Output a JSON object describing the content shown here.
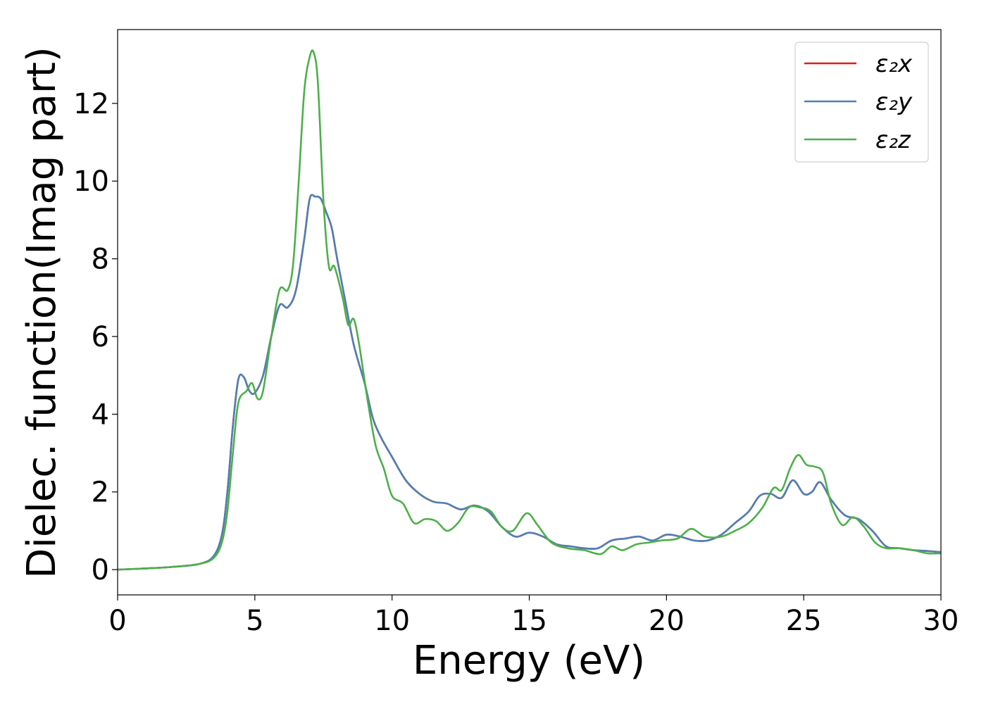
{
  "chart_data": {
    "type": "line",
    "xlabel": "Energy (eV)",
    "ylabel": "Dielec. function(Imag part)",
    "xlim": [
      0,
      30
    ],
    "ylim": [
      -0.65,
      13.9
    ],
    "xticks": [
      0,
      5,
      10,
      15,
      20,
      25,
      30
    ],
    "yticks": [
      0,
      2,
      4,
      6,
      8,
      10,
      12
    ],
    "grid": false,
    "legend_position": "top-right",
    "series": [
      {
        "name": "ε₂x",
        "color": "#e41a1c",
        "x": [
          0,
          1,
          2,
          3,
          3.5,
          3.8,
          4.0,
          4.2,
          4.4,
          4.6,
          4.8,
          5.0,
          5.3,
          5.6,
          5.9,
          6.2,
          6.5,
          6.8,
          7.0,
          7.2,
          7.4,
          7.6,
          7.8,
          8.0,
          8.3,
          8.6,
          9.0,
          9.3,
          9.6,
          10.0,
          10.5,
          11.0,
          11.5,
          12.0,
          12.5,
          13.0,
          13.5,
          14.0,
          14.5,
          15.0,
          15.5,
          16.0,
          16.5,
          17.0,
          17.5,
          18.0,
          18.5,
          19.0,
          19.5,
          20.0,
          20.5,
          21.0,
          21.5,
          22.0,
          22.5,
          23.0,
          23.4,
          23.8,
          24.2,
          24.6,
          25.0,
          25.3,
          25.6,
          26.0,
          26.5,
          27.0,
          27.5,
          28.0,
          28.5,
          29.0,
          29.5,
          30.0
        ],
        "values": [
          0.0,
          0.03,
          0.07,
          0.15,
          0.35,
          0.9,
          2.0,
          3.7,
          4.9,
          4.95,
          4.6,
          4.55,
          5.0,
          6.0,
          6.8,
          6.75,
          7.2,
          8.5,
          9.55,
          9.6,
          9.55,
          9.2,
          8.8,
          8.0,
          6.9,
          5.8,
          4.8,
          3.9,
          3.4,
          2.9,
          2.3,
          1.95,
          1.75,
          1.7,
          1.55,
          1.65,
          1.5,
          1.1,
          0.85,
          0.95,
          0.85,
          0.65,
          0.6,
          0.55,
          0.55,
          0.75,
          0.8,
          0.85,
          0.75,
          0.9,
          0.85,
          0.75,
          0.75,
          0.9,
          1.2,
          1.5,
          1.9,
          1.95,
          1.85,
          2.3,
          1.95,
          2.0,
          2.25,
          1.8,
          1.4,
          1.3,
          1.0,
          0.6,
          0.55,
          0.5,
          0.48,
          0.45
        ]
      },
      {
        "name": "ε₂y",
        "color": "#4f80b6",
        "x": [
          0,
          1,
          2,
          3,
          3.5,
          3.8,
          4.0,
          4.2,
          4.4,
          4.6,
          4.8,
          5.0,
          5.3,
          5.6,
          5.9,
          6.2,
          6.5,
          6.8,
          7.0,
          7.2,
          7.4,
          7.6,
          7.8,
          8.0,
          8.3,
          8.6,
          9.0,
          9.3,
          9.6,
          10.0,
          10.5,
          11.0,
          11.5,
          12.0,
          12.5,
          13.0,
          13.5,
          14.0,
          14.5,
          15.0,
          15.5,
          16.0,
          16.5,
          17.0,
          17.5,
          18.0,
          18.5,
          19.0,
          19.5,
          20.0,
          20.5,
          21.0,
          21.5,
          22.0,
          22.5,
          23.0,
          23.4,
          23.8,
          24.2,
          24.6,
          25.0,
          25.3,
          25.6,
          26.0,
          26.5,
          27.0,
          27.5,
          28.0,
          28.5,
          29.0,
          29.5,
          30.0
        ],
        "values": [
          0.0,
          0.03,
          0.07,
          0.15,
          0.35,
          0.9,
          2.0,
          3.7,
          4.9,
          4.95,
          4.6,
          4.55,
          5.0,
          6.0,
          6.8,
          6.75,
          7.2,
          8.5,
          9.55,
          9.6,
          9.55,
          9.2,
          8.8,
          8.0,
          6.9,
          5.8,
          4.8,
          3.9,
          3.4,
          2.9,
          2.3,
          1.95,
          1.75,
          1.7,
          1.55,
          1.65,
          1.5,
          1.1,
          0.85,
          0.95,
          0.85,
          0.65,
          0.6,
          0.55,
          0.55,
          0.75,
          0.8,
          0.85,
          0.75,
          0.9,
          0.85,
          0.75,
          0.75,
          0.9,
          1.2,
          1.5,
          1.9,
          1.95,
          1.85,
          2.3,
          1.95,
          2.0,
          2.25,
          1.8,
          1.4,
          1.3,
          1.0,
          0.6,
          0.55,
          0.5,
          0.48,
          0.45
        ]
      },
      {
        "name": "ε₂z",
        "color": "#4daf4a",
        "x": [
          0,
          1,
          2,
          3,
          3.5,
          3.8,
          4.0,
          4.2,
          4.4,
          4.7,
          4.9,
          5.1,
          5.3,
          5.6,
          5.9,
          6.2,
          6.4,
          6.6,
          6.8,
          7.0,
          7.15,
          7.3,
          7.5,
          7.7,
          7.9,
          8.2,
          8.4,
          8.6,
          8.8,
          9.1,
          9.4,
          9.7,
          10.0,
          10.4,
          10.8,
          11.2,
          11.6,
          12.0,
          12.4,
          12.8,
          13.2,
          13.6,
          14.0,
          14.4,
          14.9,
          15.3,
          15.8,
          16.4,
          17.0,
          17.6,
          18.0,
          18.4,
          18.9,
          19.4,
          19.8,
          20.4,
          20.9,
          21.4,
          22.0,
          22.5,
          23.0,
          23.5,
          23.9,
          24.2,
          24.5,
          24.8,
          25.1,
          25.4,
          25.7,
          26.0,
          26.4,
          26.8,
          27.2,
          27.6,
          28.0,
          28.5,
          29.0,
          29.5,
          30.0
        ],
        "values": [
          0.0,
          0.03,
          0.07,
          0.15,
          0.3,
          0.7,
          1.5,
          3.0,
          4.3,
          4.6,
          4.8,
          4.4,
          4.6,
          6.0,
          7.2,
          7.2,
          7.9,
          10.0,
          12.3,
          13.2,
          13.3,
          12.5,
          9.5,
          7.8,
          7.8,
          7.0,
          6.3,
          6.45,
          5.8,
          4.4,
          3.2,
          2.6,
          1.9,
          1.7,
          1.2,
          1.3,
          1.25,
          1.0,
          1.2,
          1.6,
          1.6,
          1.5,
          1.1,
          1.0,
          1.45,
          1.15,
          0.7,
          0.55,
          0.5,
          0.4,
          0.6,
          0.5,
          0.65,
          0.7,
          0.75,
          0.8,
          1.05,
          0.85,
          0.85,
          1.0,
          1.2,
          1.6,
          2.1,
          2.05,
          2.6,
          2.95,
          2.7,
          2.65,
          2.5,
          1.7,
          1.15,
          1.35,
          1.1,
          0.7,
          0.55,
          0.55,
          0.5,
          0.42,
          0.42
        ]
      }
    ]
  }
}
